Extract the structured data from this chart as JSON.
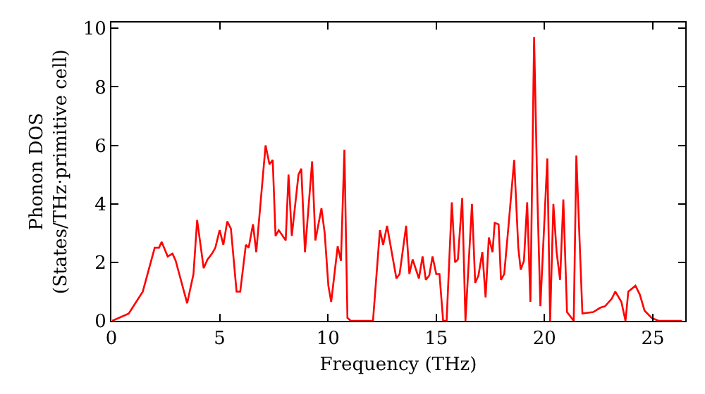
{
  "chart_data": {
    "type": "line",
    "xlabel": "Frequency (THz)",
    "ylabel": "Phonon DOS\n(States/THz·primitive cell)",
    "xlim": [
      0,
      26.5
    ],
    "ylim": [
      0,
      10.2
    ],
    "xticks": [
      0,
      5,
      10,
      15,
      20,
      25
    ],
    "yticks": [
      0,
      2,
      4,
      6,
      8,
      10
    ],
    "marker": "none",
    "line_style": "solid",
    "x": [
      0.04,
      0.8,
      1.45,
      2.0,
      2.2,
      2.32,
      2.6,
      2.82,
      2.97,
      3.5,
      3.79,
      3.96,
      4.26,
      4.44,
      4.65,
      4.8,
      5.0,
      5.17,
      5.35,
      5.52,
      5.78,
      5.95,
      6.21,
      6.34,
      6.54,
      6.69,
      7.12,
      7.3,
      7.45,
      7.58,
      7.73,
      8.05,
      8.18,
      8.33,
      8.64,
      8.77,
      8.94,
      9.27,
      9.42,
      9.7,
      9.85,
      10.02,
      10.15,
      10.45,
      10.6,
      10.76,
      10.9,
      11.06,
      12.08,
      12.4,
      12.55,
      12.73,
      13.16,
      13.31,
      13.61,
      13.76,
      13.91,
      14.2,
      14.37,
      14.52,
      14.68,
      14.83,
      15.0,
      15.15,
      15.32,
      15.48,
      15.72,
      15.87,
      16.0,
      16.2,
      16.35,
      16.65,
      16.8,
      16.95,
      17.13,
      17.28,
      17.43,
      17.6,
      17.7,
      17.88,
      17.99,
      18.14,
      18.35,
      18.6,
      18.79,
      18.9,
      19.05,
      19.2,
      19.35,
      19.52,
      19.68,
      19.81,
      20.13,
      20.26,
      20.41,
      20.56,
      20.72,
      20.87,
      21.04,
      21.35,
      21.47,
      21.75,
      22.25,
      22.58,
      22.8,
      23.1,
      23.27,
      23.55,
      23.74,
      23.87,
      24.2,
      24.4,
      24.62,
      24.95,
      25.27,
      26.35
    ],
    "series": [
      {
        "color": "#ff0000",
        "values": [
          0,
          0.25,
          1.0,
          2.5,
          2.5,
          2.7,
          2.2,
          2.3,
          2.05,
          0.6,
          1.6,
          3.45,
          1.8,
          2.1,
          2.3,
          2.5,
          3.1,
          2.6,
          3.4,
          3.15,
          1.0,
          1.0,
          2.6,
          2.5,
          3.3,
          2.35,
          6.0,
          5.35,
          5.5,
          2.9,
          3.1,
          2.75,
          5.0,
          2.9,
          5.0,
          5.2,
          2.35,
          5.45,
          2.75,
          3.85,
          3.0,
          1.2,
          0.65,
          2.55,
          2.05,
          5.85,
          0.1,
          0,
          0,
          3.1,
          2.6,
          3.25,
          1.45,
          1.6,
          3.25,
          1.6,
          2.1,
          1.45,
          2.2,
          1.4,
          1.55,
          2.2,
          1.6,
          1.6,
          0,
          0,
          4.05,
          2.0,
          2.1,
          4.2,
          0,
          4.0,
          1.3,
          1.55,
          2.35,
          0.8,
          2.85,
          2.35,
          3.35,
          3.3,
          1.4,
          1.6,
          3.35,
          5.5,
          2.5,
          1.75,
          2.05,
          4.05,
          0.65,
          9.7,
          4.0,
          0.5,
          5.55,
          0,
          4.0,
          2.35,
          1.4,
          4.15,
          0.3,
          0,
          5.65,
          0.25,
          0.3,
          0.45,
          0.5,
          0.75,
          1.0,
          0.65,
          0,
          1.0,
          1.2,
          0.9,
          0.35,
          0.1,
          0,
          0
        ]
      }
    ]
  }
}
